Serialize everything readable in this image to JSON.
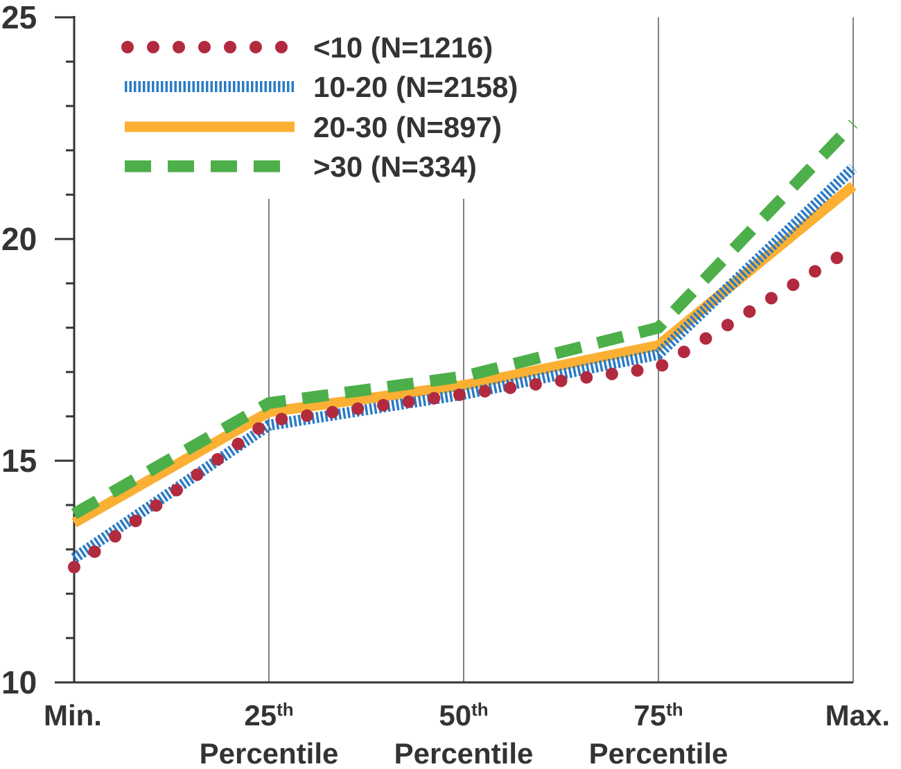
{
  "chart_data": {
    "type": "line",
    "categories": [
      {
        "main": "Min.",
        "sup": "",
        "sub": ""
      },
      {
        "main": "25",
        "sup": "th",
        "sub": "Percentile"
      },
      {
        "main": "50",
        "sup": "th",
        "sub": "Percentile"
      },
      {
        "main": "75",
        "sup": "th",
        "sub": "Percentile"
      },
      {
        "main": "Max.",
        "sup": "",
        "sub": ""
      }
    ],
    "ylim": [
      10,
      25
    ],
    "yticks": [
      10,
      15,
      20,
      25
    ],
    "grid": "vertical lines at category positions",
    "legend_position": "top-left",
    "series": [
      {
        "name": "<10 (N=1216)",
        "values": [
          12.6,
          15.9,
          16.5,
          17.1,
          19.8
        ],
        "color": "#B22A3E",
        "style": "dotted"
      },
      {
        "name": "10-20 (N=2158)",
        "values": [
          12.8,
          15.8,
          16.5,
          17.4,
          21.6
        ],
        "color": "#2B7BC6",
        "style": "hatched"
      },
      {
        "name": "20-30 (N=897)",
        "values": [
          13.6,
          16.1,
          16.7,
          17.6,
          21.2
        ],
        "color": "#FBB033",
        "style": "solid"
      },
      {
        "name": ">30 (N=334)",
        "values": [
          13.8,
          16.3,
          16.9,
          18.0,
          22.6
        ],
        "color": "#4DAF4A",
        "style": "dashed"
      }
    ]
  }
}
